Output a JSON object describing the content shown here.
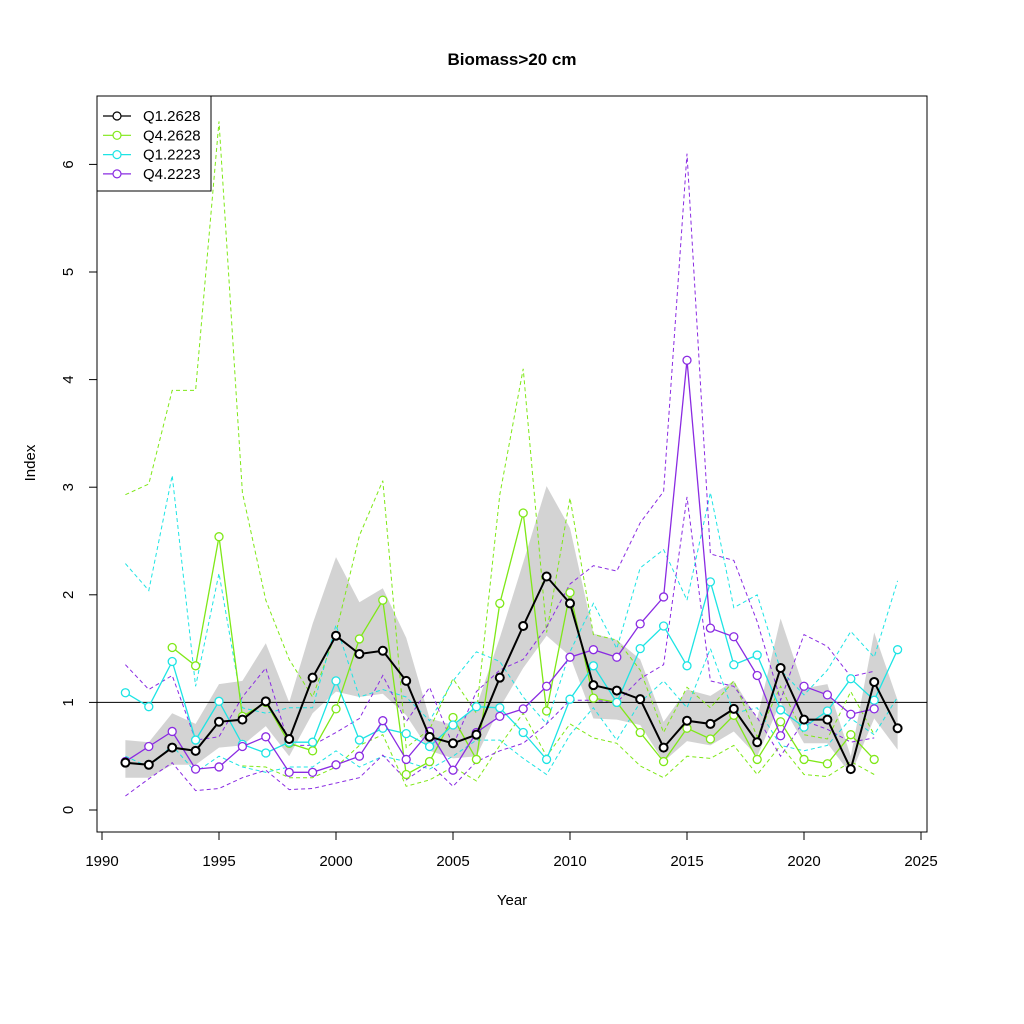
{
  "chart_data": {
    "type": "line",
    "title": "Biomass>20 cm",
    "xlabel": "Year",
    "ylabel": "Index",
    "xlim": [
      1990,
      2025
    ],
    "ylim": [
      0,
      6.5
    ],
    "xticks": [
      "1990",
      "1995",
      "2000",
      "2005",
      "2010",
      "2015",
      "2020",
      "2025"
    ],
    "yticks": [
      "0",
      "1",
      "2",
      "3",
      "4",
      "5",
      "6"
    ],
    "reference_line_y": 1,
    "legend_position": "top-left",
    "grid": false,
    "x": [
      1991,
      1992,
      1993,
      1994,
      1995,
      1996,
      1997,
      1998,
      1999,
      2000,
      2001,
      2002,
      2003,
      2004,
      2005,
      2006,
      2007,
      2008,
      2009,
      2010,
      2011,
      2012,
      2013,
      2014,
      2015,
      2016,
      2017,
      2018,
      2019,
      2020,
      2021,
      2022,
      2023,
      2024
    ],
    "band": {
      "series": "Q1.2628",
      "color": "#d3d3d3",
      "lower": [
        0.3,
        0.3,
        0.42,
        0.42,
        0.58,
        0.6,
        0.78,
        0.5,
        0.9,
        1.1,
        1.05,
        1.08,
        0.88,
        0.55,
        0.48,
        0.5,
        0.95,
        1.32,
        1.62,
        1.43,
        0.85,
        0.84,
        0.79,
        0.45,
        0.64,
        0.6,
        0.73,
        0.5,
        1.0,
        0.62,
        0.62,
        0.33,
        0.85,
        0.56
      ],
      "upper": [
        0.65,
        0.63,
        0.9,
        0.8,
        1.17,
        1.2,
        1.55,
        1.0,
        1.73,
        2.35,
        1.93,
        2.06,
        1.6,
        0.85,
        0.79,
        0.96,
        1.6,
        2.3,
        3.01,
        2.62,
        1.64,
        1.58,
        1.4,
        0.82,
        1.12,
        1.06,
        1.2,
        0.85,
        1.78,
        1.13,
        1.17,
        0.5,
        1.65,
        1.02
      ]
    },
    "series": [
      {
        "name": "Q1.2628",
        "color": "#000000",
        "values": [
          0.44,
          0.42,
          0.58,
          0.55,
          0.82,
          0.84,
          1.01,
          0.66,
          1.23,
          1.62,
          1.45,
          1.48,
          1.2,
          0.68,
          0.62,
          0.7,
          1.23,
          1.71,
          2.17,
          1.92,
          1.16,
          1.11,
          1.03,
          0.58,
          0.83,
          0.8,
          0.94,
          0.63,
          1.32,
          0.84,
          0.84,
          0.38,
          1.19,
          0.76
        ],
        "lower": null,
        "upper": null
      },
      {
        "name": "Q4.2628",
        "color": "#7fe817",
        "values": [
          null,
          null,
          1.51,
          1.34,
          2.54,
          0.87,
          1.0,
          0.62,
          0.55,
          0.94,
          1.59,
          1.95,
          0.33,
          0.45,
          0.86,
          0.47,
          1.92,
          2.76,
          0.92,
          2.02,
          1.04,
          1.0,
          0.72,
          0.45,
          0.76,
          0.66,
          0.88,
          0.47,
          0.82,
          0.47,
          0.43,
          0.7,
          0.47,
          null
        ],
        "lower": [
          null,
          null,
          null,
          null,
          null,
          0.41,
          0.4,
          0.3,
          0.3,
          0.4,
          0.6,
          0.7,
          0.22,
          0.28,
          0.4,
          0.27,
          0.6,
          0.9,
          0.5,
          0.8,
          0.67,
          0.62,
          0.41,
          0.3,
          0.5,
          0.48,
          0.6,
          0.33,
          0.6,
          0.33,
          0.31,
          0.45,
          0.33,
          null
        ],
        "upper": [
          2.93,
          3.03,
          3.9,
          3.9,
          6.4,
          2.95,
          1.95,
          1.4,
          1.05,
          1.65,
          2.55,
          3.06,
          0.58,
          0.75,
          1.22,
          0.9,
          2.93,
          4.1,
          1.65,
          2.9,
          1.63,
          1.58,
          1.3,
          0.72,
          1.14,
          0.95,
          1.2,
          0.68,
          1.15,
          0.7,
          0.66,
          1.1,
          0.7,
          null
        ]
      },
      {
        "name": "Q1.2223",
        "color": "#1de4e4",
        "values": [
          1.09,
          0.96,
          1.38,
          0.65,
          1.01,
          0.61,
          0.53,
          0.63,
          0.63,
          1.2,
          0.65,
          0.76,
          0.71,
          0.59,
          0.79,
          0.96,
          0.95,
          0.72,
          0.47,
          1.03,
          1.34,
          1.0,
          1.5,
          1.71,
          1.34,
          2.12,
          1.35,
          1.44,
          0.93,
          0.77,
          0.92,
          1.22,
          1.02,
          1.49
        ],
        "lower": [
          0.5,
          0.4,
          0.6,
          0.35,
          0.5,
          0.4,
          0.35,
          0.4,
          0.4,
          0.55,
          0.4,
          0.5,
          0.45,
          0.38,
          0.5,
          0.65,
          0.65,
          0.48,
          0.33,
          0.7,
          0.95,
          0.65,
          1.0,
          1.2,
          0.95,
          1.5,
          0.9,
          0.95,
          0.6,
          0.55,
          0.6,
          0.85,
          0.7,
          1.05
        ],
        "upper": [
          2.29,
          2.04,
          3.11,
          1.15,
          2.2,
          0.95,
          0.9,
          0.95,
          0.95,
          1.72,
          1.05,
          1.12,
          1.05,
          0.83,
          1.2,
          1.47,
          1.38,
          1.05,
          0.8,
          1.47,
          1.92,
          1.5,
          2.25,
          2.42,
          1.95,
          2.95,
          1.88,
          2.0,
          1.3,
          1.07,
          1.3,
          1.66,
          1.42,
          2.13
        ]
      },
      {
        "name": "Q4.2223",
        "color": "#8a2be2",
        "values": [
          0.45,
          0.59,
          0.73,
          0.38,
          0.4,
          0.59,
          0.68,
          0.35,
          0.35,
          0.42,
          0.5,
          0.83,
          0.47,
          0.73,
          0.37,
          0.72,
          0.87,
          0.94,
          1.15,
          1.42,
          1.49,
          1.42,
          1.73,
          1.98,
          4.18,
          1.69,
          1.61,
          1.25,
          0.69,
          1.15,
          1.07,
          0.89,
          0.94,
          null
        ],
        "lower": [
          0.13,
          0.29,
          0.44,
          0.18,
          0.2,
          0.3,
          0.37,
          0.19,
          0.2,
          0.25,
          0.3,
          0.51,
          0.28,
          0.43,
          0.22,
          0.45,
          0.55,
          0.62,
          0.8,
          1.02,
          1.02,
          1.0,
          1.22,
          1.35,
          2.91,
          1.2,
          1.15,
          0.86,
          0.5,
          0.83,
          0.75,
          0.63,
          0.67,
          null
        ],
        "upper": [
          1.35,
          1.12,
          1.25,
          0.65,
          0.68,
          1.05,
          1.32,
          0.6,
          0.6,
          0.72,
          0.85,
          1.25,
          0.82,
          1.14,
          0.6,
          1.1,
          1.3,
          1.4,
          1.7,
          2.1,
          2.27,
          2.22,
          2.67,
          2.96,
          6.1,
          2.38,
          2.32,
          1.75,
          1.02,
          1.63,
          1.52,
          1.24,
          1.29,
          null
        ]
      }
    ]
  }
}
